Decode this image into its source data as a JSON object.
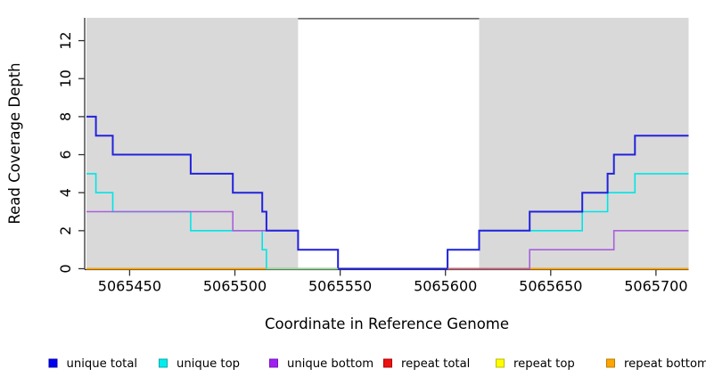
{
  "figure": {
    "background": "#ffffff",
    "plot_background_highlight": "#d9d9d9"
  },
  "chart_data": {
    "type": "line",
    "subtype": "step-after-coverage",
    "title": "",
    "xlabel": "Coordinate in Reference Genome",
    "ylabel": "Read Coverage Depth",
    "xlim": [
      5065429.5,
      5065715.5
    ],
    "ylim": [
      0,
      13.2
    ],
    "x_ticks": [
      5065450,
      5065500,
      5065550,
      5065600,
      5065650,
      5065700
    ],
    "y_ticks": [
      0,
      2,
      4,
      6,
      8,
      10,
      12
    ],
    "grid": false,
    "legend_position": "bottom",
    "highlight_regions": [
      {
        "name": "left-unique-region",
        "x1": 5065429.5,
        "x2": 5065530,
        "fill": "#d9d9d9"
      },
      {
        "name": "right-unique-region",
        "x1": 5065616,
        "x2": 5065715.5,
        "fill": "#d9d9d9"
      }
    ],
    "gap_top_line": {
      "x1": 5065530,
      "x2": 5065616,
      "y": 13.2,
      "color": "#6e6e6e"
    },
    "series": [
      {
        "name": "unique total",
        "color": "#2222dd",
        "width": 2,
        "points": [
          [
            5065430,
            8
          ],
          [
            5065434,
            7
          ],
          [
            5065442,
            6
          ],
          [
            5065479,
            5
          ],
          [
            5065499,
            4
          ],
          [
            5065513,
            3
          ],
          [
            5065515,
            2
          ],
          [
            5065530,
            1
          ],
          [
            5065549,
            0
          ],
          [
            5065601,
            1
          ],
          [
            5065616,
            2
          ],
          [
            5065640,
            3
          ],
          [
            5065665,
            4
          ],
          [
            5065677,
            5
          ],
          [
            5065680,
            6
          ],
          [
            5065690,
            7
          ]
        ]
      },
      {
        "name": "unique top",
        "color": "#00e5e5",
        "width": 1.6,
        "points": [
          [
            5065430,
            5
          ],
          [
            5065434,
            4
          ],
          [
            5065442,
            3
          ],
          [
            5065479,
            2
          ],
          [
            5065513,
            1
          ],
          [
            5065515,
            0
          ],
          [
            5065601,
            1
          ],
          [
            5065616,
            2
          ],
          [
            5065665,
            3
          ],
          [
            5065677,
            4
          ],
          [
            5065690,
            5
          ]
        ]
      },
      {
        "name": "unique bottom",
        "color": "#a95fdd",
        "width": 1.6,
        "points": [
          [
            5065430,
            3
          ],
          [
            5065499,
            2
          ],
          [
            5065530,
            1
          ],
          [
            5065549,
            0
          ],
          [
            5065640,
            1
          ],
          [
            5065680,
            2
          ]
        ]
      },
      {
        "name": "repeat total",
        "color": "#cc2233",
        "width": 1.5,
        "points": [
          [
            5065430,
            0
          ]
        ]
      },
      {
        "name": "repeat top",
        "color": "#f5e626",
        "width": 1.5,
        "points": [
          [
            5065430,
            0
          ]
        ]
      },
      {
        "name": "repeat bottom",
        "color": "#ffa500",
        "width": 1.8,
        "points": [
          [
            5065430,
            0
          ]
        ]
      }
    ],
    "baseline_visible_segments": [
      {
        "x1": 5065515,
        "x2": 5065549,
        "color": "#99d899"
      },
      {
        "x1": 5065601,
        "x2": 5065640,
        "color": "#c9607a"
      }
    ]
  },
  "x_axis": {
    "label": "Coordinate in Reference Genome",
    "tick_labels": [
      "5065450",
      "5065500",
      "5065550",
      "5065600",
      "5065650",
      "5065700"
    ]
  },
  "y_axis": {
    "label": "Read Coverage Depth",
    "tick_labels": [
      "0",
      "2",
      "4",
      "6",
      "8",
      "10",
      "12"
    ]
  },
  "legend": {
    "items": [
      {
        "label": "unique total",
        "fill": "#0000ee",
        "border": "#0000aa"
      },
      {
        "label": "unique top",
        "fill": "#00eeee",
        "border": "#00aaaa"
      },
      {
        "label": "unique bottom",
        "fill": "#a020f0",
        "border": "#7715bb"
      },
      {
        "label": "repeat total",
        "fill": "#ee1111",
        "border": "#aa0000"
      },
      {
        "label": "repeat top",
        "fill": "#ffff00",
        "border": "#bbbb00"
      },
      {
        "label": "repeat bottom",
        "fill": "#ffa500",
        "border": "#bb7a00"
      }
    ]
  }
}
